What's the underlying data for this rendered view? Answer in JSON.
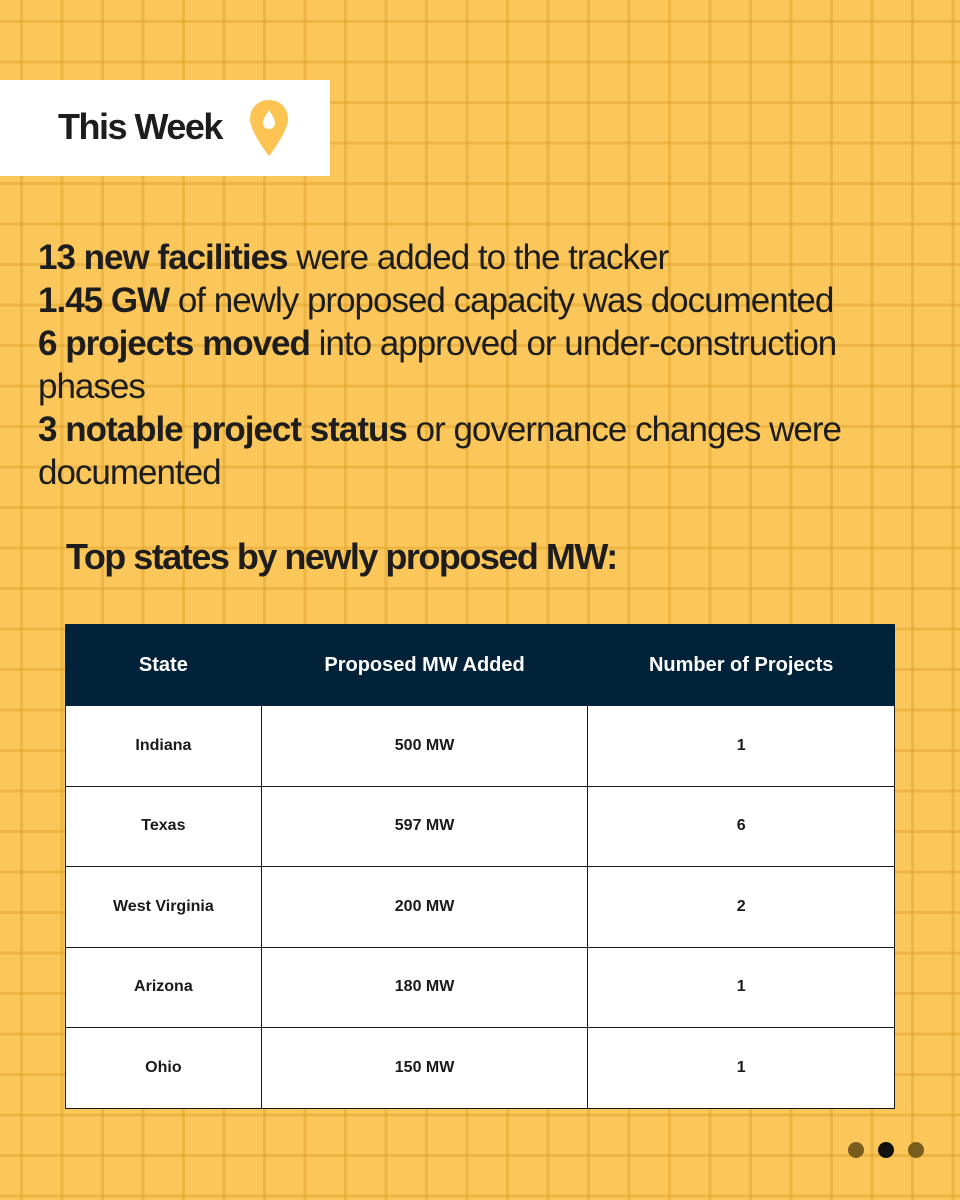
{
  "header": {
    "title": "This Week",
    "icon": "map-pin-icon"
  },
  "stats": [
    {
      "bold": "13 new facilities",
      "rest": " were added to the tracker"
    },
    {
      "bold": "1.45 GW",
      "rest": " of newly proposed capacity was documented"
    },
    {
      "bold": "6 projects moved",
      "rest": " into approved or under-construction phases"
    },
    {
      "bold": "3 notable project status",
      "rest": " or governance changes were documented"
    }
  ],
  "subtitle": "Top states by newly proposed MW:",
  "table": {
    "headers": [
      "State",
      "Proposed MW Added",
      "Number of Projects"
    ],
    "rows": [
      [
        "Indiana",
        "500 MW",
        "1"
      ],
      [
        "Texas",
        "597 MW",
        "6"
      ],
      [
        "West Virginia",
        "200 MW",
        "2"
      ],
      [
        "Arizona",
        "180 MW",
        "1"
      ],
      [
        "Ohio",
        "150 MW",
        "1"
      ]
    ]
  },
  "pagination": {
    "total": 3,
    "active_index": 1
  },
  "colors": {
    "background": "#fcc75a",
    "header_bg": "#02223a",
    "accent": "#fdc454"
  }
}
